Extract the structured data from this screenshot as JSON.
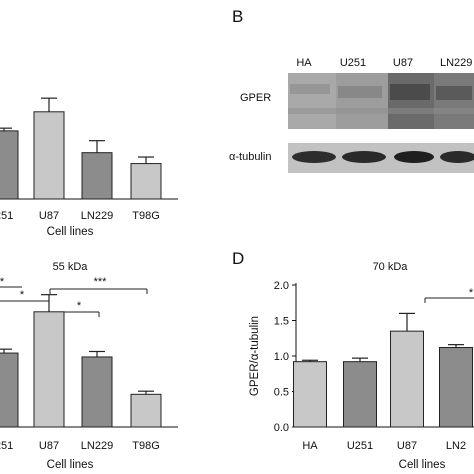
{
  "panels": {
    "b_letter": "B",
    "d_letter": "D"
  },
  "blot": {
    "lanes": [
      "HA",
      "U251",
      "U87",
      "LN229"
    ],
    "rows": [
      "GPER",
      "α-tubulin"
    ]
  },
  "chart_data": [
    {
      "id": "A",
      "type": "bar",
      "categories": [
        "251",
        "U87",
        "LN229",
        "T98G"
      ],
      "values": [
        1.25,
        1.6,
        0.85,
        0.65
      ],
      "errors": [
        0.05,
        0.25,
        0.22,
        0.12
      ],
      "colors": [
        "#8c8c8c",
        "#c8c8c8",
        "#8c8c8c",
        "#c8c8c8"
      ],
      "xlabel": "Cell lines",
      "title": "",
      "ylabel": "",
      "ylim": [
        0,
        2.0
      ],
      "partial": true
    },
    {
      "id": "C",
      "type": "bar",
      "categories": [
        "251",
        "U87",
        "LN229",
        "T98G"
      ],
      "values": [
        0.95,
        1.48,
        0.9,
        0.42
      ],
      "errors": [
        0.05,
        0.22,
        0.07,
        0.04
      ],
      "colors": [
        "#8c8c8c",
        "#c8c8c8",
        "#8c8c8c",
        "#c8c8c8"
      ],
      "xlabel": "Cell lines",
      "title": "55 kDa",
      "ylabel": "",
      "significance": [
        "*",
        "*",
        "*",
        "***"
      ],
      "partial": true
    },
    {
      "id": "D",
      "type": "bar",
      "categories": [
        "HA",
        "U251",
        "U87",
        "LN2"
      ],
      "values": [
        0.92,
        0.92,
        1.35,
        1.12
      ],
      "errors": [
        0.02,
        0.05,
        0.25,
        0.04
      ],
      "colors": [
        "#c8c8c8",
        "#8c8c8c",
        "#c8c8c8",
        "#8c8c8c"
      ],
      "xlabel": "Cell lines",
      "title": "70 kDa",
      "ylabel": "GPER/α-tubulin",
      "yticks": [
        "0.0",
        "0.5",
        "1.0",
        "1.5",
        "2.0"
      ],
      "ylim": [
        0,
        2.0
      ],
      "significance": [
        "*"
      ],
      "partial": true
    }
  ]
}
